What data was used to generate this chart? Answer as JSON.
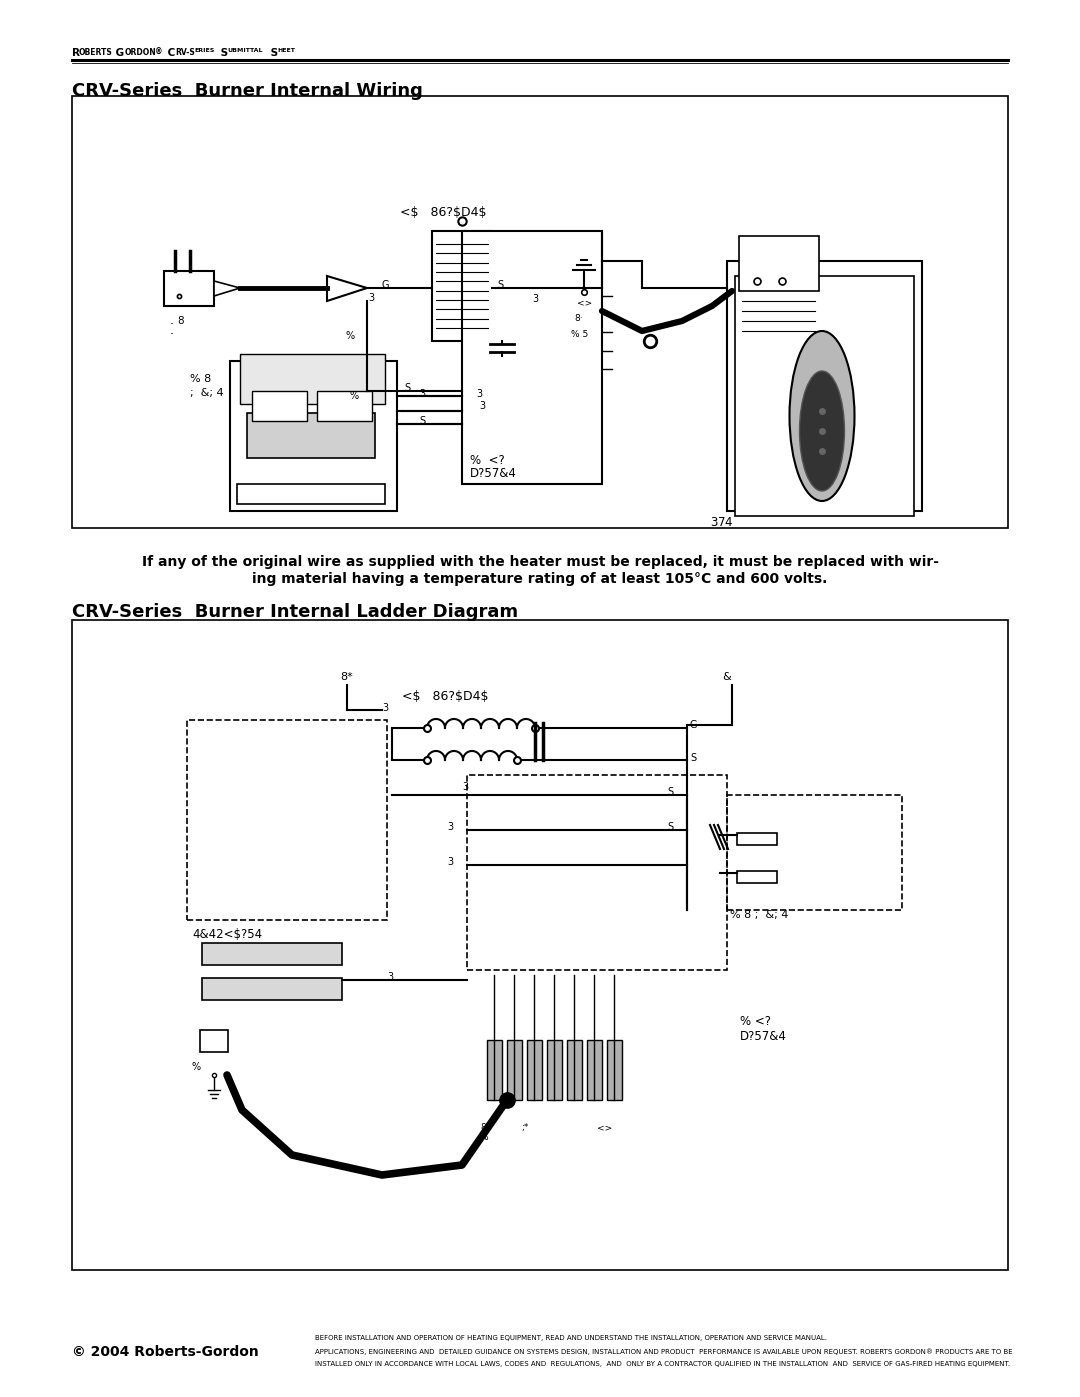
{
  "page_width": 10.8,
  "page_height": 13.97,
  "bg_color": "#ffffff",
  "title1": "CRV-Series  Burner Internal Wiring",
  "title2": "CRV-Series  Burner Internal Ladder Diagram",
  "warning_line1": "If any of the original wire as supplied with the heater must be replaced, it must be replaced with wir-",
  "warning_line2": "ing material having a temperature rating of at least 105°C and 600 volts.",
  "footer_left": "© 2004 Roberts-Gordon",
  "footer_right1": "BEFORE INSTALLATION AND OPERATION OF HEATING EQUIPMENT, READ AND UNDERSTAND THE INSTALLATION, OPERATION AND SERVICE MANUAL.",
  "footer_right2": "APPLICATIONS, ENGINEERING AND  DETAILED GUIDANCE ON SYSTEMS DESIGN, INSTALLATION AND PRODUCT  PERFORMANCE IS AVAILABLE UPON REQUEST. ROBERTS GORDON® PRODUCTS ARE TO BE",
  "footer_right3": "INSTALLED ONLY IN ACCORDANCE WITH LOCAL LAWS, CODES AND  REGULATIONS,  AND  ONLY BY A CONTRACTOR QUALIFIED IN THE INSTALLATION  AND  SERVICE OF GAS-FIRED HEATING EQUIPMENT.",
  "lc": "#000000",
  "tc": "#000000"
}
